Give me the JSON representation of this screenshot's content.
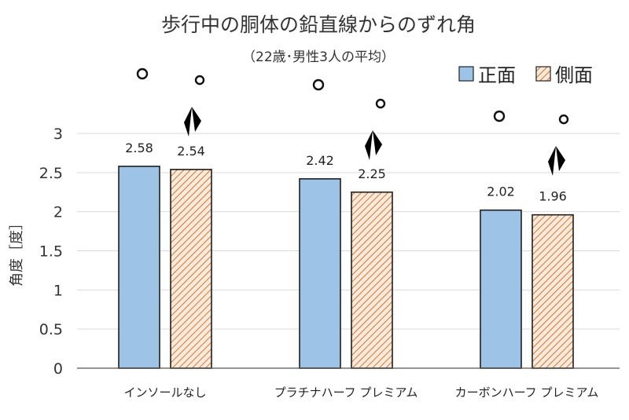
{
  "chart_data": {
    "type": "bar",
    "title": "歩行中の胴体の鉛直線からのずれ角",
    "subtitle": "（22歳･男性3人の平均）",
    "ylabel": "角度［度］",
    "xlabel": "",
    "ylim": [
      0,
      3
    ],
    "yticks": [
      "0",
      "0.5",
      "1",
      "1.5",
      "2",
      "2.5",
      "3"
    ],
    "categories": [
      "インソールなし",
      "プラチナハーフ プレミアム",
      "カーボンハーフ プレミアム"
    ],
    "series": [
      {
        "name": "正面",
        "values": [
          2.58,
          2.42,
          2.02
        ],
        "labels": [
          "2.58",
          "2.42",
          "2.02"
        ],
        "color": "#9dc3e6",
        "pattern": "solid"
      },
      {
        "name": "側面",
        "values": [
          2.54,
          2.25,
          1.96
        ],
        "labels": [
          "2.54",
          "2.25",
          "1.96"
        ],
        "color": "#c55a11",
        "pattern": "diagonal-hatch"
      }
    ],
    "grid": true,
    "legend": "top-right"
  },
  "icons": [
    "front-stick-figure-icon",
    "side-stick-figure-icon"
  ]
}
